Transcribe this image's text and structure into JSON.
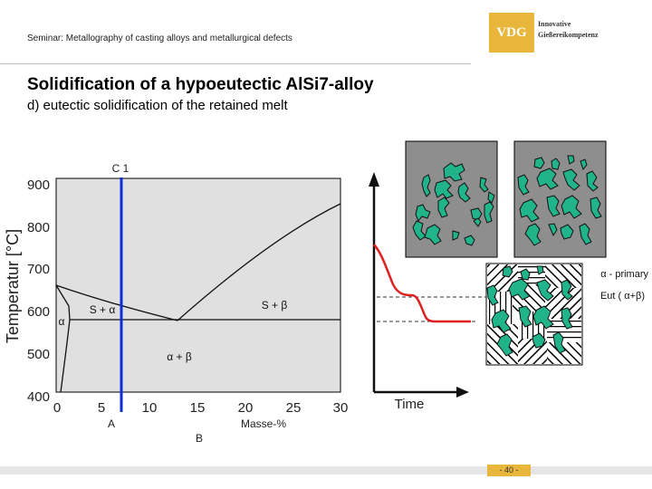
{
  "header": {
    "seminar": "Seminar: Metallography of casting alloys and metallurgical defects",
    "logo_mark": "VDG",
    "logo_line1": "Innovative",
    "logo_line2": "Gießereikompetenz",
    "brand_color": "#e8b63a"
  },
  "title": "Solidification of a hypoeutectic AlSi7-alloy",
  "subtitle": "d) eutectic solidification of the retained melt",
  "phase_diagram": {
    "ylabel": "Temperatur [°C]",
    "y_ticks": [
      "900",
      "800",
      "700",
      "600",
      "500",
      "400"
    ],
    "x_ticks": [
      "0",
      "5",
      "10",
      "15",
      "20",
      "25",
      "30"
    ],
    "xlabel": "Masse-%",
    "label_A": "A",
    "label_B": "B",
    "composition_label": "C 1",
    "region_s_alpha": "S + α",
    "region_s_beta": "S +  β",
    "region_alpha": "α",
    "region_alpha_beta": "α + β",
    "composition_line_color": "#0a2ed8"
  },
  "cooling_curve": {
    "xlabel": "Time",
    "curve_color": "#e02020"
  },
  "legend": {
    "primary": "α - primary",
    "eutectic": "Eut ( α+β)",
    "primary_color": "#21b38a"
  },
  "footer": {
    "page": "- 40 -"
  }
}
